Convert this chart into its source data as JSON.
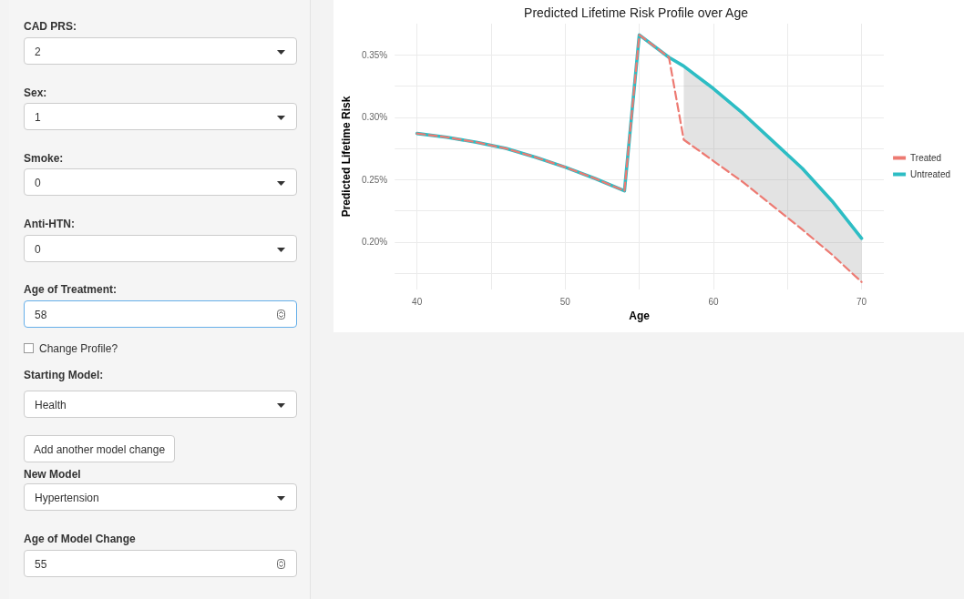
{
  "chart_data": {
    "type": "line",
    "title": "Predicted Lifetime Risk Profile over Age",
    "xlabel": "Age",
    "ylabel": "Predicted Lifetime Risk",
    "xlim": [
      38.5,
      71.5
    ],
    "xticks": [
      40,
      {
        "value": 45,
        "label": null
      },
      50,
      {
        "value": 55,
        "label": null
      },
      60,
      {
        "value": 65,
        "label": null
      },
      70
    ],
    "ylim": [
      0.162,
      0.375
    ],
    "yticks": [
      {
        "value": 0.175,
        "label": null
      },
      {
        "value": 0.2,
        "label": "0.20%"
      },
      {
        "value": 0.225,
        "label": null
      },
      {
        "value": 0.25,
        "label": "0.25%"
      },
      {
        "value": 0.275,
        "label": null
      },
      {
        "value": 0.3,
        "label": "0.30%"
      },
      {
        "value": 0.325,
        "label": null
      },
      {
        "value": 0.35,
        "label": "0.35%"
      }
    ],
    "x": [
      40,
      42,
      44,
      46,
      48,
      50,
      52,
      54,
      55,
      57,
      58,
      60,
      62,
      64,
      66,
      68,
      70
    ],
    "series": [
      {
        "name": "Untreated",
        "color": "#2dbdc4",
        "line_style": "solid",
        "values": [
          0.287,
          0.284,
          0.28,
          0.275,
          0.268,
          0.26,
          0.251,
          0.241,
          0.366,
          0.348,
          0.341,
          0.323,
          0.303,
          0.281,
          0.259,
          0.233,
          0.203
        ],
        "lower": [
          null,
          null,
          null,
          null,
          null,
          null,
          null,
          null,
          null,
          null,
          0.282,
          0.265,
          0.248,
          0.229,
          0.21,
          0.19,
          0.168
        ],
        "upper": [
          null,
          null,
          null,
          null,
          null,
          null,
          null,
          null,
          null,
          null,
          0.341,
          0.323,
          0.303,
          0.281,
          0.259,
          0.233,
          0.203
        ]
      },
      {
        "name": "Treated",
        "color": "#ed7a72",
        "line_style": "dashed",
        "values": [
          0.287,
          0.284,
          0.28,
          0.275,
          0.268,
          0.26,
          0.251,
          0.241,
          0.366,
          0.348,
          0.282,
          0.265,
          0.248,
          0.229,
          0.21,
          0.19,
          0.168
        ]
      }
    ],
    "legend": "right",
    "grid": true,
    "marker": "none",
    "annotations": [
      "CAD PRS:",
      "2",
      "Sex:",
      "1",
      "Smoke:",
      "0",
      "Anti-HTN:",
      "0",
      "Age of Treatment:",
      "58",
      "Change Profile?",
      "Starting Model:",
      "Health",
      "Add another model change",
      "New Model",
      "Hypertension",
      "Age of Model Change",
      "55"
    ]
  }
}
